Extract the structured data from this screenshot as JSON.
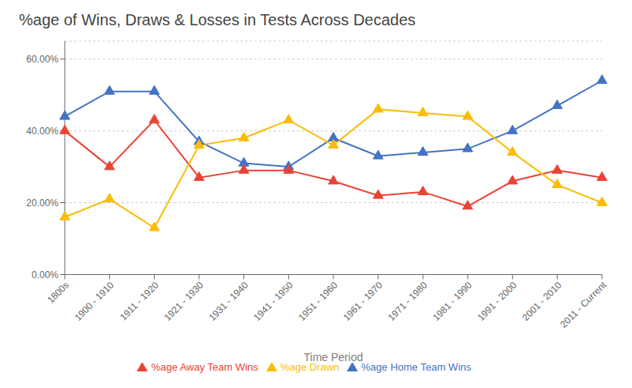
{
  "chart_data": {
    "type": "line",
    "title": "%age of Wins, Draws & Losses in Tests Across Decades",
    "x_label": "Time Period",
    "categories": [
      "1800s",
      "1900 - 1910",
      "1911 - 1920",
      "1921 - 1930",
      "1931 - 1940",
      "1941 - 1950",
      "1951 - 1960",
      "1961 - 1970",
      "1971 - 1980",
      "1981 - 1990",
      "1991 - 2000",
      "2001 - 2010",
      "2011 - Current"
    ],
    "series": [
      {
        "name": "%age Home Team Wins",
        "color": "#4472C4",
        "marker": "triangle",
        "values": [
          44,
          51,
          51,
          37,
          31,
          30,
          38,
          33,
          34,
          35,
          40,
          47,
          54
        ]
      },
      {
        "name": "%age Away Team Wins",
        "color": "#EA4335",
        "marker": "triangle",
        "values": [
          40,
          30,
          43,
          27,
          29,
          29,
          26,
          22,
          23,
          19,
          26,
          29,
          27
        ]
      },
      {
        "name": "%age Drawn",
        "color": "#FBBC04",
        "marker": "triangle",
        "values": [
          16,
          21,
          13,
          36,
          38,
          43,
          36,
          46,
          45,
          44,
          34,
          25,
          20
        ]
      }
    ],
    "ylim": [
      0,
      65
    ],
    "yticks": [
      {
        "value": 0,
        "label": "0.00%"
      },
      {
        "value": 20,
        "label": "20.00%"
      },
      {
        "value": 40,
        "label": "40.00%"
      },
      {
        "value": 60,
        "label": "60.00%"
      }
    ],
    "grid": true,
    "legend": "bottom"
  }
}
